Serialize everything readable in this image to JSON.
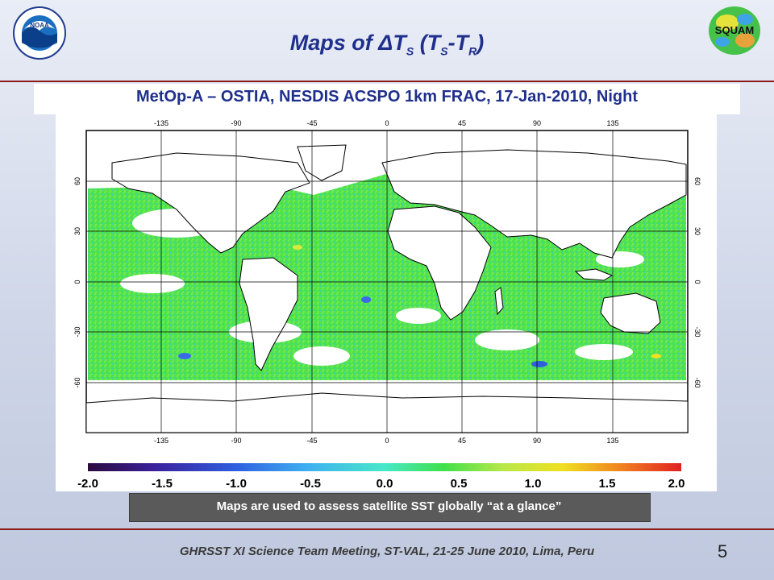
{
  "slide": {
    "title_main": "Maps of ΔT",
    "title_sub1": "S",
    "title_mid": " (T",
    "title_sub2": "S",
    "title_dash": "-T",
    "title_sub3": "R",
    "title_end": ")",
    "subtitle": "MetOp-A – OSTIA, NESDIS ACSPO 1km FRAC, 17-Jan-2010, Night",
    "caption": "Maps are used to assess satellite SST globally “at a glance”",
    "footer": "GHRSST XI Science Team Meeting, ST-VAL, 21-25 June 2010, Lima, Peru",
    "page_number": "5",
    "logo_left": "noaa-logo",
    "logo_right_text": "SQUAM",
    "accent_color": "#1f2f8c",
    "rule_color": "#8b1a1a"
  },
  "map": {
    "lon_ticks": [
      "-135",
      "-90",
      "-45",
      "0",
      "45",
      "90",
      "135"
    ],
    "lat_ticks": [
      "60",
      "30",
      "0",
      "-30",
      "-60"
    ],
    "colorbar_ticks": [
      "-2.0",
      "-1.5",
      "-1.0",
      "-0.5",
      "0.0",
      "0.5",
      "1.0",
      "1.5",
      "2.0"
    ],
    "colorbar_range": [
      -2.0,
      2.0
    ],
    "colormap": [
      "#2b0a3d",
      "#3a1f9a",
      "#2f5fe0",
      "#3fb0f0",
      "#48e8c8",
      "#3fe04a",
      "#b8e84a",
      "#f0e020",
      "#f08020",
      "#e02020"
    ]
  }
}
